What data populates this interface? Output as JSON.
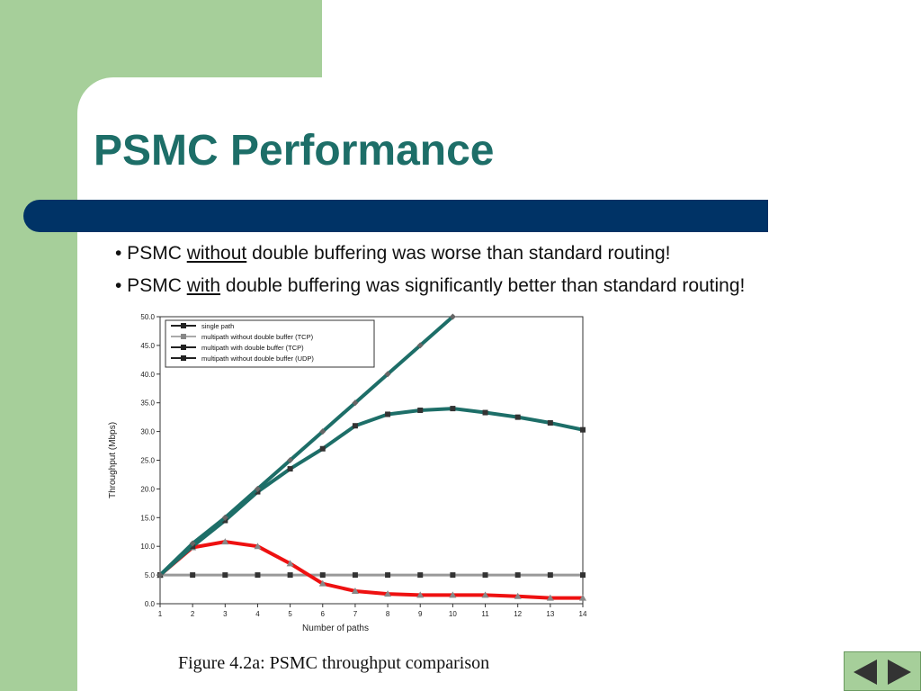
{
  "slide": {
    "title": "PSMC Performance",
    "bullets": [
      {
        "prefix": "• PSMC ",
        "emph": "without",
        "suffix": " double buffering was worse than standard routing!"
      },
      {
        "prefix": "• PSMC ",
        "emph": "with",
        "suffix": " double buffering was significantly better than standard routing!"
      }
    ],
    "caption": "Figure 4.2a: PSMC throughput comparison",
    "colors": {
      "accent": "#1d6e68",
      "bar": "#003366",
      "background": "#a6cf9a"
    }
  },
  "navigation": {
    "prev_icon": "triangle-left-icon",
    "next_icon": "triangle-right-icon"
  },
  "chart_data": {
    "type": "line",
    "xlabel": "Number of paths",
    "ylabel": "Throughput (Mbps)",
    "x": [
      1,
      2,
      3,
      4,
      5,
      6,
      7,
      8,
      9,
      10,
      11,
      12,
      13,
      14
    ],
    "xlim": [
      1,
      14
    ],
    "ylim": [
      0,
      50
    ],
    "yticks": [
      "0.0",
      "5.0",
      "10.0",
      "15.0",
      "20.0",
      "25.0",
      "30.0",
      "35.0",
      "40.0",
      "45.0",
      "50.0"
    ],
    "legend_position": "top-left",
    "grid": false,
    "series": [
      {
        "name": "single path",
        "color": "#999999",
        "width": 3,
        "marker": "square",
        "values": [
          5,
          5,
          5,
          5,
          5,
          5,
          5,
          5,
          5,
          5,
          5,
          5,
          5,
          5
        ]
      },
      {
        "name": "multipath without double buffer (TCP)",
        "color": "#ee1111",
        "width": 4,
        "marker": "triangle",
        "values": [
          5,
          9.8,
          10.8,
          10,
          7,
          3.5,
          2.2,
          1.7,
          1.5,
          1.5,
          1.5,
          1.3,
          1,
          1
        ]
      },
      {
        "name": "multipath with double buffer (TCP)",
        "color": "#1d6e68",
        "width": 4,
        "marker": "square",
        "values": [
          5,
          10,
          14.5,
          19.5,
          23.5,
          27,
          31,
          33,
          33.7,
          34,
          33.3,
          32.5,
          31.5,
          30.3
        ]
      },
      {
        "name": "multipath without double buffer (UDP)",
        "color": "#1d6e68",
        "width": 4,
        "marker": "diamond",
        "values": [
          5,
          10.5,
          15,
          20,
          25,
          30,
          35,
          40,
          45,
          50,
          null,
          null,
          null,
          null
        ]
      }
    ]
  }
}
